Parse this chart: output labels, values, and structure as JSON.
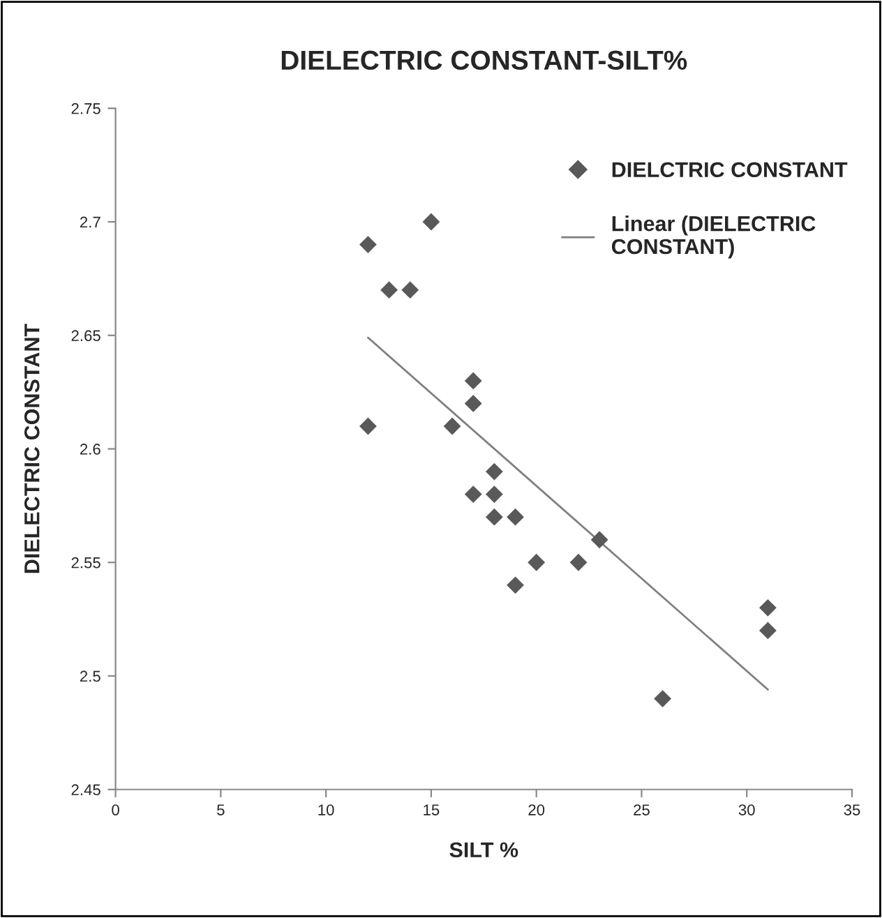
{
  "chart_data": {
    "type": "scatter",
    "title": "DIELECTRIC CONSTANT-SILT%",
    "xlabel": "SILT %",
    "ylabel": "DIELECTRIC CONSTANT",
    "series": [
      {
        "name": "DIELCTRIC CONSTANT",
        "color": "#595959",
        "marker": "diamond",
        "x": [
          12,
          12,
          13,
          14,
          15,
          16,
          17,
          17,
          17,
          18,
          18,
          18,
          19,
          19,
          20,
          22,
          23,
          26,
          31,
          31
        ],
        "values": [
          2.69,
          2.61,
          2.67,
          2.67,
          2.7,
          2.61,
          2.63,
          2.62,
          2.58,
          2.59,
          2.58,
          2.57,
          2.57,
          2.54,
          2.55,
          2.55,
          2.56,
          2.49,
          2.53,
          2.52
        ]
      },
      {
        "name": "Linear (DIELECTRIC CONSTANT)",
        "type": "line",
        "color": "#7f7f7f",
        "marker": "none",
        "line_style": "solid",
        "x": [
          12,
          31
        ],
        "values": [
          2.649,
          2.494
        ]
      }
    ],
    "xlim": [
      0,
      35
    ],
    "xticks": [
      0,
      5,
      10,
      15,
      20,
      25,
      30,
      35
    ],
    "ylim": [
      2.45,
      2.75
    ],
    "yticks": [
      {
        "value": 2.45,
        "label": "2.45"
      },
      {
        "value": 2.5,
        "label": "2.5"
      },
      {
        "value": 2.55,
        "label": "2.55"
      },
      {
        "value": 2.6,
        "label": "2.6"
      },
      {
        "value": 2.65,
        "label": "2.65"
      },
      {
        "value": 2.7,
        "label": "2.7"
      },
      {
        "value": 2.75,
        "label": "2.75"
      }
    ],
    "grid": false,
    "legend": "top right"
  }
}
